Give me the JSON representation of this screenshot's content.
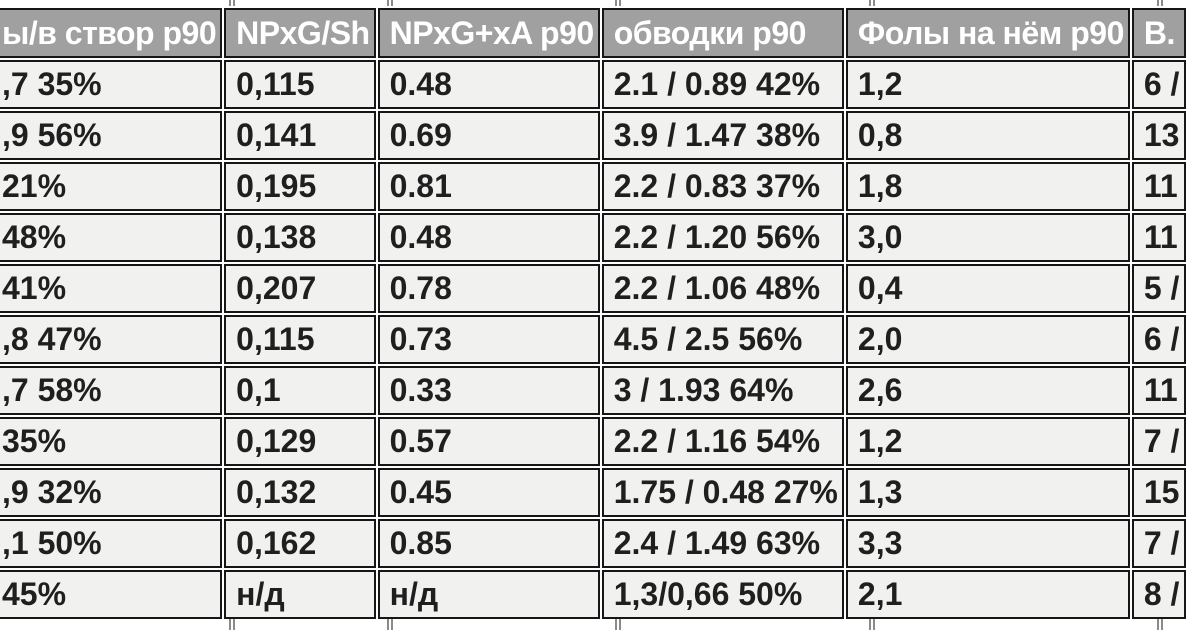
{
  "colors": {
    "header_bg": "#a0a0a0",
    "header_text": "#ffffff",
    "cell_bg": "#f1f1ef",
    "text": "#1f1f1f",
    "border": "#161616",
    "green_light": "#92d050",
    "green_dark": "#00b050",
    "yellow": "#ffff00"
  },
  "table": {
    "headers": [
      {
        "label": "ы/в створ p90"
      },
      {
        "label": "NPxG/Sh"
      },
      {
        "label": "NPxG+xA p90"
      },
      {
        "label": "обводки p90"
      },
      {
        "label": "Фолы на нём p90"
      },
      {
        "label": "В."
      }
    ],
    "rows": [
      {
        "cells": [
          {
            "text": ",7 35%",
            "bg": "default"
          },
          {
            "text": "0,115",
            "bg": "default"
          },
          {
            "text": "0.48",
            "bg": "default"
          },
          {
            "text": "2.1 / 0.89 42%",
            "bg": "default"
          },
          {
            "text": "1,2",
            "bg": "default"
          },
          {
            "text": "6 /",
            "bg": "default"
          }
        ]
      },
      {
        "cells": [
          {
            "text": ",9 56%",
            "bg": "green_light"
          },
          {
            "text": "0,141",
            "bg": "default"
          },
          {
            "text": "0.69",
            "bg": "default"
          },
          {
            "text": "3.9 / 1.47 38%",
            "bg": "default"
          },
          {
            "text": "0,8",
            "bg": "default"
          },
          {
            "text": "13",
            "bg": "default"
          }
        ]
      },
      {
        "cells": [
          {
            "text": "21%",
            "bg": "default"
          },
          {
            "text": "0,195",
            "bg": "green_dark"
          },
          {
            "text": "0.81",
            "bg": "green_light"
          },
          {
            "text": "2.2 / 0.83 37%",
            "bg": "default"
          },
          {
            "text": "1,8",
            "bg": "default"
          },
          {
            "text": "11",
            "bg": "green_dark"
          }
        ]
      },
      {
        "cells": [
          {
            "text": "48%",
            "bg": "default"
          },
          {
            "text": "0,138",
            "bg": "default"
          },
          {
            "text": "0.48",
            "bg": "default"
          },
          {
            "text": "2.2 / 1.20 56%",
            "bg": "default"
          },
          {
            "text": "3,0",
            "bg": "green_light"
          },
          {
            "text": "11",
            "bg": "default"
          }
        ]
      },
      {
        "cells": [
          {
            "text": "41%",
            "bg": "default"
          },
          {
            "text": "0,207",
            "bg": "green_dark"
          },
          {
            "text": "0.78",
            "bg": "default"
          },
          {
            "text": "2.2 / 1.06 48%",
            "bg": "default"
          },
          {
            "text": "0,4",
            "bg": "default"
          },
          {
            "text": "5 /",
            "bg": "default"
          }
        ]
      },
      {
        "cells": [
          {
            "text": ",8 47%",
            "bg": "default"
          },
          {
            "text": "0,115",
            "bg": "default"
          },
          {
            "text": "0.73",
            "bg": "default"
          },
          {
            "text": "4.5 / 2.5 56%",
            "bg": "default"
          },
          {
            "text": "2,0",
            "bg": "default"
          },
          {
            "text": "6 /",
            "bg": "default"
          }
        ]
      },
      {
        "cells": [
          {
            "text": ",7 58%",
            "bg": "green_dark"
          },
          {
            "text": "0,1",
            "bg": "default"
          },
          {
            "text": "0.33",
            "bg": "default"
          },
          {
            "text": "3 / 1.93 64%",
            "bg": "green_dark"
          },
          {
            "text": "2,6",
            "bg": "default"
          },
          {
            "text": "11",
            "bg": "default"
          }
        ]
      },
      {
        "cells": [
          {
            "text": "35%",
            "bg": "default"
          },
          {
            "text": "0,129",
            "bg": "default"
          },
          {
            "text": "0.57",
            "bg": "default"
          },
          {
            "text": "2.2 / 1.16 54%",
            "bg": "default"
          },
          {
            "text": "1,2",
            "bg": "default"
          },
          {
            "text": "7 /",
            "bg": "default"
          }
        ]
      },
      {
        "cells": [
          {
            "text": ",9 32%",
            "bg": "default"
          },
          {
            "text": "0,132",
            "bg": "default"
          },
          {
            "text": "0.45",
            "bg": "default"
          },
          {
            "text": "1.75 / 0.48 27%",
            "bg": "default"
          },
          {
            "text": "1,3",
            "bg": "default"
          },
          {
            "text": "15",
            "bg": "default"
          }
        ]
      },
      {
        "cells": [
          {
            "text": ",1 50%",
            "bg": "green_light"
          },
          {
            "text": "0,162",
            "bg": "green_light"
          },
          {
            "text": "0.85",
            "bg": "green_dark"
          },
          {
            "text": "2.4 / 1.49 63%",
            "bg": "green_light"
          },
          {
            "text": "3,3",
            "bg": "green_dark"
          },
          {
            "text": "7 /",
            "bg": "yellow"
          }
        ]
      },
      {
        "cells": [
          {
            "text": "45%",
            "bg": "yellow"
          },
          {
            "text": "н/д",
            "bg": "default"
          },
          {
            "text": "н/д",
            "bg": "default"
          },
          {
            "text": "1,3/0,66 50%",
            "bg": "yellow",
            "align": "center"
          },
          {
            "text": "2,1",
            "bg": "yellow"
          },
          {
            "text": "8 /",
            "bg": "yellow"
          }
        ]
      }
    ]
  }
}
